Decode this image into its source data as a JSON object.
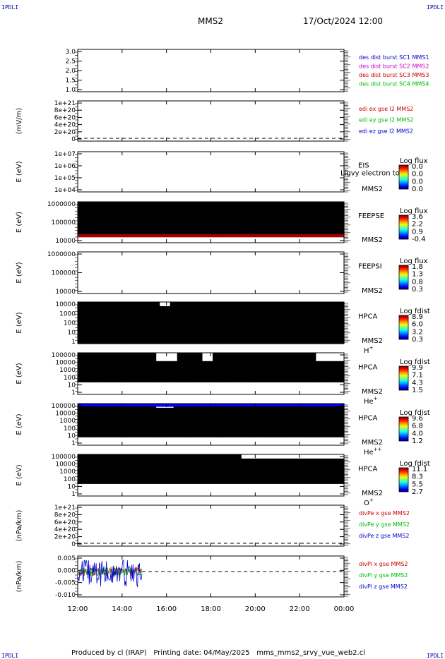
{
  "header": {
    "corner_tl": "IPDLI",
    "corner_tr": "IPDLI",
    "corner_bl": "IPDLI",
    "corner_br": "IPDLI",
    "title": "MMS2",
    "date": "17/Oct/2024 12:00"
  },
  "footer": "Produced by cl (IRAP)   Printing date: 04/May/2025   mms_mms2_srvy_vue_web2.cl",
  "chart_data": {
    "type": "heatmap",
    "x_ticks": [
      "12:00",
      "14:00",
      "16:00",
      "18:00",
      "20:00",
      "22:00",
      "00:00"
    ],
    "x_range_hours": [
      12,
      24
    ],
    "panels": [
      {
        "id": "distribution",
        "ylabel": "",
        "yticks": [
          "3.0",
          "2.5",
          "2.0",
          "1.5",
          "1.0"
        ],
        "legend": [
          {
            "text": "des dist burst SC1 MMS1",
            "color": "#0000cc"
          },
          {
            "text": "des dist burst SC2 MMS2",
            "color": "#cc00cc"
          },
          {
            "text": "des dist burst SC3 MMS3",
            "color": "#cc0000"
          },
          {
            "text": "des dist burst SC4 MMS4",
            "color": "#00bb00"
          }
        ]
      },
      {
        "id": "efield",
        "ylabel": "(mV/m)",
        "yticks": [
          "1e+21",
          "8e+20",
          "6e+20",
          "4e+20",
          "2e+20",
          "0"
        ],
        "legend": [
          {
            "text": "edi ex gse l2 MMS2",
            "color": "#cc0000"
          },
          {
            "text": "edi ey gse l2 MMS2",
            "color": "#00bb00"
          },
          {
            "text": "edi ez gse l2 MMS2",
            "color": "#0000cc"
          }
        ]
      },
      {
        "id": "eis",
        "ylabel": "E (eV)",
        "yticks": [
          "1e+07",
          "1e+06",
          "1e+05",
          "1e+04"
        ],
        "instrument": [
          "EIS",
          "MMS2"
        ],
        "overlay": "Ligvy electron to",
        "colorbar_title": "Log flux",
        "colorbar_ticks": [
          "0.0",
          "0.0",
          "0.0",
          "0.0"
        ]
      },
      {
        "id": "feeps_e",
        "ylabel": "E (eV)",
        "yticks": [
          "1000000",
          "100000",
          "10000"
        ],
        "instrument": [
          "FEEPSE",
          "MMS2"
        ],
        "colorbar_title": "Log flux",
        "colorbar_ticks": [
          "3.6",
          "2.2",
          "0.9",
          "-0.4"
        ]
      },
      {
        "id": "feeps_i",
        "ylabel": "E (eV)",
        "yticks": [
          "1000000",
          "100000",
          "10000"
        ],
        "instrument": [
          "FEEPSI",
          "MMS2"
        ],
        "colorbar_title": "Log flux",
        "colorbar_ticks": [
          "1.8",
          "1.3",
          "0.8",
          "0.3"
        ]
      },
      {
        "id": "hpca_h",
        "ylabel": "E (eV)",
        "yticks": [
          "10000",
          "1000",
          "100",
          "10",
          "1"
        ],
        "instrument": [
          "HPCA",
          "MMS2"
        ],
        "species": "H",
        "species_sup": "+",
        "colorbar_title": "Log fdist",
        "colorbar_ticks": [
          "8.9",
          "6.0",
          "3.2",
          "0.3"
        ]
      },
      {
        "id": "hpca_he",
        "ylabel": "E (eV)",
        "yticks": [
          "100000",
          "10000",
          "1000",
          "100",
          "10",
          "1"
        ],
        "instrument": [
          "HPCA",
          "MMS2"
        ],
        "species": "He",
        "species_sup": "+",
        "colorbar_title": "Log fdist",
        "colorbar_ticks": [
          "9.9",
          "7.1",
          "4.3",
          "1.5"
        ]
      },
      {
        "id": "hpca_hepp",
        "ylabel": "E (eV)",
        "yticks": [
          "100000",
          "10000",
          "1000",
          "100",
          "10",
          "1"
        ],
        "instrument": [
          "HPCA",
          "MMS2"
        ],
        "species": "He",
        "species_sup": "++",
        "colorbar_title": "Log fdist",
        "colorbar_ticks": [
          "9.6",
          "6.8",
          "4.0",
          "1.2"
        ]
      },
      {
        "id": "hpca_o",
        "ylabel": "E (eV)",
        "yticks": [
          "100000",
          "10000",
          "1000",
          "100",
          "10",
          "1"
        ],
        "instrument": [
          "HPCA",
          "MMS2"
        ],
        "species": "O",
        "species_sup": "+",
        "colorbar_title": "Log fdist",
        "colorbar_ticks": [
          "11.1",
          "8.3",
          "5.5",
          "2.7"
        ]
      },
      {
        "id": "divpe",
        "ylabel": "(nPa/km)",
        "yticks": [
          "1e+21",
          "8e+20",
          "6e+20",
          "4e+20",
          "2e+20",
          "0"
        ],
        "legend": [
          {
            "text": "divPe x gse MMS2",
            "color": "#cc0000"
          },
          {
            "text": "divPe y gse MMS2",
            "color": "#00bb00"
          },
          {
            "text": "divPe z gse MMS2",
            "color": "#0000cc"
          }
        ]
      },
      {
        "id": "divpi",
        "ylabel": "(nPa/km)",
        "yticks": [
          "0.005",
          "0.000",
          "-0.005",
          "-0.010"
        ],
        "ylim": [
          -0.012,
          0.0075
        ],
        "data_end_hour": 14.9,
        "legend": [
          {
            "text": "divPi x gse MMS2",
            "color": "#cc0000"
          },
          {
            "text": "divPi y gse MMS2",
            "color": "#00bb00"
          },
          {
            "text": "divPi z gse MMS2",
            "color": "#0000cc"
          }
        ]
      }
    ]
  }
}
